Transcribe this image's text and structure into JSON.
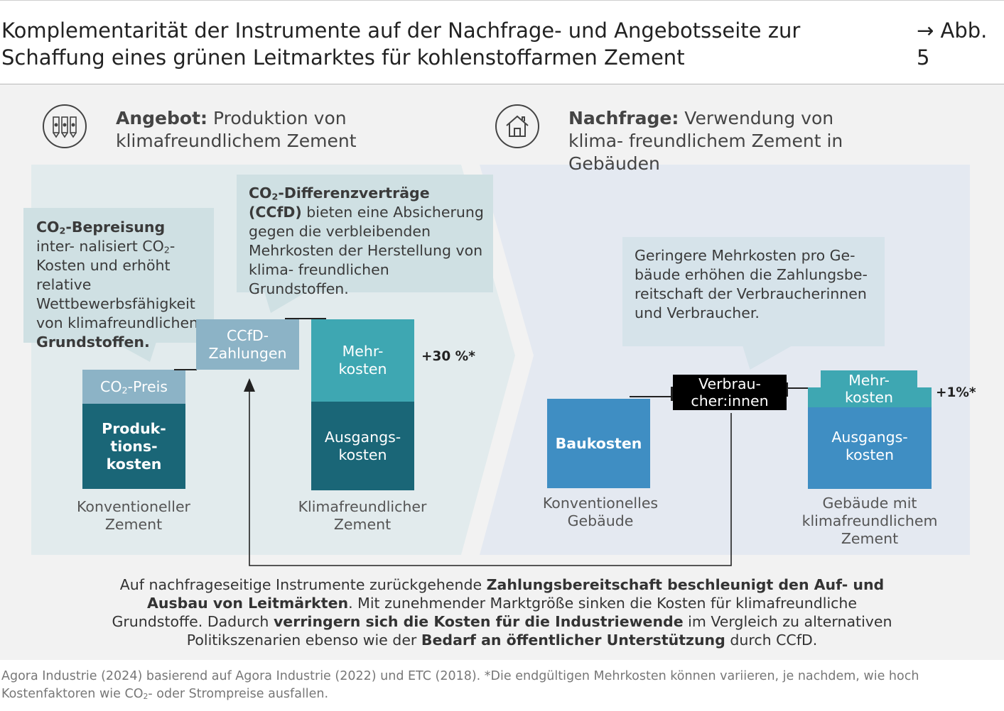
{
  "title": "Komplementarität der Instrumente auf der Nachfrage- und Angebotsseite zur Schaffung eines grünen Leitmarktes für kohlenstoffarmen Zement",
  "figure_ref": "→ Abb. 5",
  "supply": {
    "heading_bold": "Angebot:",
    "heading_text": " Produktion von klimafreundlichem Zement",
    "icon": "factory-silo-icon"
  },
  "demand": {
    "heading_bold": "Nachfrage:",
    "heading_text": " Verwendung von klima- freundlichem Zement in Gebäuden",
    "icon": "house-icon"
  },
  "bubble_co2": {
    "bold": "CO",
    "sub": "2",
    "bold_rest": "-Bepreisung",
    "t1": " inter- nalisiert CO",
    "sub2": "2",
    "t2": "-Kosten und erhöht relative Wettbewerbsfähigkeit von klimafreundlichen ",
    "bold_end": "Grundstoffen."
  },
  "bubble_ccfd": {
    "bold": "CO",
    "sub": "2",
    "bold_rest": "-Differenzverträge (CCfD)",
    "text": " bieten eine Absicherung gegen die verbleibenden Mehrkosten der Herstellung von klima- freundlichen Grundstoffen."
  },
  "bubble_demand": {
    "text": "Geringere Mehrkosten pro Ge- bäude erhöhen die Zahlungsbe- reitschaft der Verbraucherinnen und Verbraucher."
  },
  "conv_cement": {
    "top_pre": "CO",
    "top_sub": "2",
    "top_post": "-Preis",
    "bottom": "Produk- tions- kosten",
    "label": "Konventioneller Zement"
  },
  "ccfd_box": {
    "text": "CCfD- Zahlungen"
  },
  "green_cement": {
    "top": "Mehr- kosten",
    "bottom": "Ausgangs- kosten",
    "pct": "+30 %*",
    "label": "Klimafreundlicher Zement"
  },
  "conv_building": {
    "box": "Baukosten",
    "label": "Konventionelles Gebäude"
  },
  "consumers": {
    "text": "Verbrau- cher:innen"
  },
  "green_building": {
    "top": "Mehr- kosten",
    "bottom": "Ausgangs- kosten",
    "pct": "+1%*",
    "label": "Gebäude mit klimafreundlichem Zement"
  },
  "bottom_text": {
    "t1": "Auf nachfrageseitige Instrumente zurückgehende ",
    "b1": "Zahlungsbereitschaft beschleunigt den Auf- und Ausbau von Leitmärkten",
    "t2": ". Mit zunehmender Marktgröße sinken die Kosten für klimafreundliche Grundstoffe. Dadurch ",
    "b2": "verringern sich die Kosten für die Industriewende",
    "t3": " im Vergleich zu alternativen Politikszenarien ebenso wie der ",
    "b3": "Bedarf an öffentlicher Unterstützung",
    "t4": " durch CCfD."
  },
  "source": {
    "t1": "Agora Industrie (2024) basierend auf Agora Industrie (2022) und ETC (2018). *Die endgültigen Mehrkosten können variieren, je nachdem, wie hoch Kostenfaktoren wie CO",
    "sub": "2",
    "t2": "- oder Strompreise ausfallen."
  },
  "colors": {
    "dark_teal": "#1a6677",
    "light_steel": "#8cb3c6",
    "mid_teal": "#3ea7b2",
    "blue": "#3f8ec3",
    "black": "#000000"
  }
}
